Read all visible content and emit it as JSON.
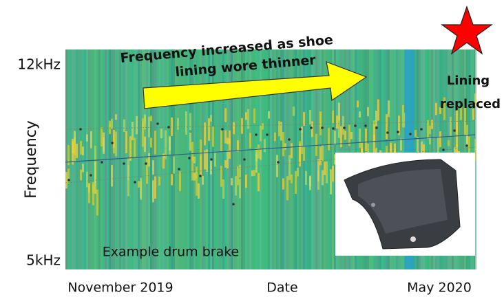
{
  "annotation": {
    "line1": "Frequency increased as shoe",
    "line2": "lining wore thinner"
  },
  "axes": {
    "y_label": "Frequency",
    "y_top": "12kHz",
    "y_bottom": "5kHz",
    "x_label": "Date",
    "x_start": "November 2019",
    "x_end": "May 2020"
  },
  "notes": {
    "lining_line1": "Lining",
    "lining_line2": "replaced",
    "example": "Example drum brake"
  }
}
